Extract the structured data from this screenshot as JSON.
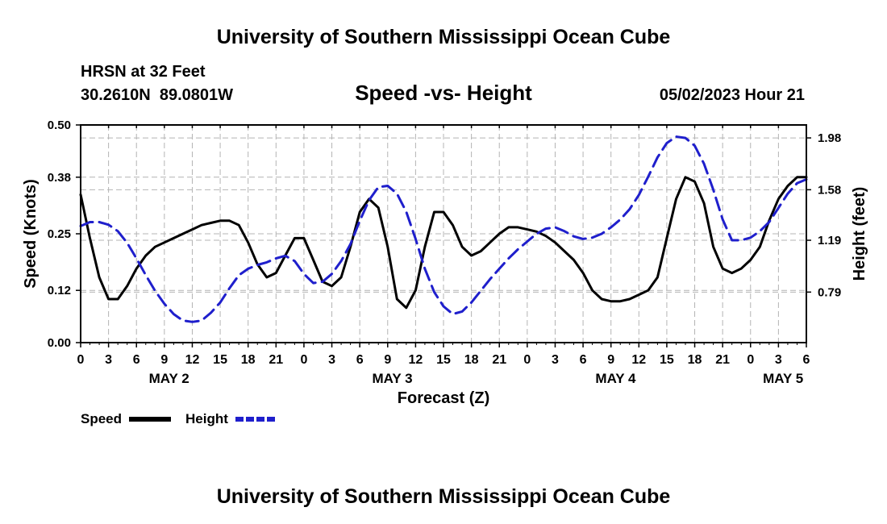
{
  "header": {
    "title": "University of Southern Mississippi Ocean Cube",
    "station": "HRSN at 32 Feet",
    "coords": "30.2610N  89.0801W",
    "subtitle": "Speed -vs- Height",
    "timestamp": "05/02/2023 Hour 21"
  },
  "footer": {
    "title": "University of Southern Mississippi Ocean Cube"
  },
  "chart_data": {
    "type": "line",
    "title": "Speed -vs- Height",
    "xlabel": "Forecast (Z)",
    "ylabel_left": "Speed (Knots)",
    "ylabel_right": "Height (feet)",
    "x_unit": "hours since May 2 00Z",
    "xlim": [
      0,
      78
    ],
    "ylim_left": [
      0,
      0.5
    ],
    "ylim_right": [
      0.4,
      2.08
    ],
    "x_ticks": [
      0,
      3,
      6,
      9,
      12,
      15,
      18,
      21,
      24,
      27,
      30,
      33,
      36,
      39,
      42,
      45,
      48,
      51,
      54,
      57,
      60,
      63,
      66,
      69,
      72,
      75,
      78
    ],
    "x_tick_labels": [
      "0",
      "3",
      "6",
      "9",
      "12",
      "15",
      "18",
      "21",
      "0",
      "3",
      "6",
      "9",
      "12",
      "15",
      "18",
      "21",
      "0",
      "3",
      "6",
      "9",
      "12",
      "15",
      "18",
      "21",
      "0",
      "3",
      "6"
    ],
    "date_labels": [
      {
        "label": "MAY 2",
        "x": 9.5
      },
      {
        "label": "MAY 3",
        "x": 33.5
      },
      {
        "label": "MAY 4",
        "x": 57.5
      },
      {
        "label": "MAY 5",
        "x": 75.5
      }
    ],
    "left_ticks": [
      0.0,
      0.12,
      0.25,
      0.38,
      0.5
    ],
    "left_tick_labels": [
      "0.00",
      "0.12",
      "0.25",
      "0.38",
      "0.50"
    ],
    "right_ticks": [
      0.79,
      1.19,
      1.58,
      1.98
    ],
    "right_tick_labels": [
      "0.79",
      "1.19",
      "1.58",
      "1.98"
    ],
    "grid": true,
    "legend_position": "bottom-left",
    "series": [
      {
        "name": "Speed",
        "axis": "left",
        "color": "#000000",
        "style": "solid",
        "x": [
          0,
          1,
          2,
          3,
          4,
          5,
          6,
          7,
          8,
          9,
          10,
          11,
          12,
          13,
          14,
          15,
          16,
          17,
          18,
          19,
          20,
          21,
          22,
          23,
          24,
          25,
          26,
          27,
          28,
          29,
          30,
          31,
          32,
          33,
          34,
          35,
          36,
          37,
          38,
          39,
          40,
          41,
          42,
          43,
          44,
          45,
          46,
          47,
          48,
          49,
          50,
          51,
          52,
          53,
          54,
          55,
          56,
          57,
          58,
          59,
          60,
          61,
          62,
          63,
          64,
          65,
          66,
          67,
          68,
          69,
          70,
          71,
          72,
          73,
          74,
          75,
          76,
          77,
          78
        ],
        "values": [
          0.34,
          0.24,
          0.15,
          0.1,
          0.1,
          0.13,
          0.17,
          0.2,
          0.22,
          0.23,
          0.24,
          0.25,
          0.26,
          0.27,
          0.275,
          0.28,
          0.28,
          0.27,
          0.23,
          0.18,
          0.15,
          0.16,
          0.2,
          0.24,
          0.24,
          0.19,
          0.14,
          0.13,
          0.15,
          0.22,
          0.3,
          0.33,
          0.31,
          0.22,
          0.1,
          0.08,
          0.12,
          0.22,
          0.3,
          0.3,
          0.27,
          0.22,
          0.2,
          0.21,
          0.23,
          0.25,
          0.265,
          0.265,
          0.26,
          0.255,
          0.245,
          0.23,
          0.21,
          0.19,
          0.16,
          0.12,
          0.1,
          0.095,
          0.095,
          0.1,
          0.11,
          0.12,
          0.15,
          0.24,
          0.33,
          0.38,
          0.37,
          0.32,
          0.22,
          0.17,
          0.16,
          0.17,
          0.19,
          0.22,
          0.28,
          0.33,
          0.36,
          0.38,
          0.38
        ]
      },
      {
        "name": "Height",
        "axis": "right",
        "color": "#1f1fcc",
        "style": "dashed",
        "x": [
          0,
          1,
          2,
          3,
          4,
          5,
          6,
          7,
          8,
          9,
          10,
          11,
          12,
          13,
          14,
          15,
          16,
          17,
          18,
          19,
          20,
          21,
          22,
          23,
          24,
          25,
          26,
          27,
          28,
          29,
          30,
          31,
          32,
          33,
          34,
          35,
          36,
          37,
          38,
          39,
          40,
          41,
          42,
          43,
          44,
          45,
          46,
          47,
          48,
          49,
          50,
          51,
          52,
          53,
          54,
          55,
          56,
          57,
          58,
          59,
          60,
          61,
          62,
          63,
          64,
          65,
          66,
          67,
          68,
          69,
          70,
          71,
          72,
          73,
          74,
          75,
          76,
          77,
          78
        ],
        "values": [
          1.3,
          1.33,
          1.33,
          1.31,
          1.26,
          1.17,
          1.05,
          0.92,
          0.8,
          0.7,
          0.62,
          0.57,
          0.56,
          0.57,
          0.63,
          0.71,
          0.82,
          0.92,
          0.97,
          1.0,
          1.02,
          1.05,
          1.07,
          1.03,
          0.93,
          0.86,
          0.87,
          0.93,
          1.03,
          1.16,
          1.34,
          1.5,
          1.6,
          1.61,
          1.55,
          1.41,
          1.2,
          0.97,
          0.79,
          0.68,
          0.62,
          0.64,
          0.71,
          0.8,
          0.89,
          0.97,
          1.05,
          1.12,
          1.18,
          1.24,
          1.28,
          1.29,
          1.26,
          1.22,
          1.2,
          1.21,
          1.24,
          1.29,
          1.35,
          1.43,
          1.54,
          1.68,
          1.83,
          1.94,
          1.99,
          1.98,
          1.92,
          1.78,
          1.58,
          1.35,
          1.19,
          1.19,
          1.21,
          1.26,
          1.33,
          1.44,
          1.55,
          1.63,
          1.66
        ]
      }
    ]
  }
}
